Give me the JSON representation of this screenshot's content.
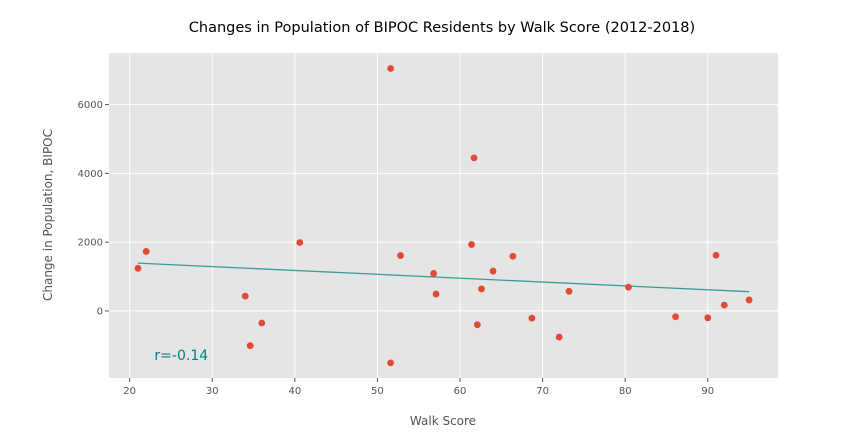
{
  "chart_data": {
    "type": "scatter",
    "title": "Changes in Population of BIPOC Residents by Walk Score (2012-2018)",
    "xlabel": "Walk Score",
    "ylabel": "Change in Population, BIPOC",
    "xlim": [
      17.5,
      98.5
    ],
    "ylim": [
      -1950,
      7500
    ],
    "x_ticks": [
      20,
      30,
      40,
      50,
      60,
      70,
      80,
      90
    ],
    "y_ticks": [
      0,
      2000,
      4000,
      6000
    ],
    "grid": true,
    "point_color": "#E24A33",
    "line_color": "#348ABD",
    "background_color": "#E5E5E5",
    "annotation_color": "#008080",
    "points": [
      {
        "x": 21,
        "y": 1240
      },
      {
        "x": 22,
        "y": 1730
      },
      {
        "x": 34,
        "y": 430
      },
      {
        "x": 34.6,
        "y": -1010
      },
      {
        "x": 36,
        "y": -350
      },
      {
        "x": 40.6,
        "y": 1990
      },
      {
        "x": 51.6,
        "y": 7050
      },
      {
        "x": 51.6,
        "y": -1510
      },
      {
        "x": 52.8,
        "y": 1610
      },
      {
        "x": 56.8,
        "y": 1090
      },
      {
        "x": 57.1,
        "y": 490
      },
      {
        "x": 61.4,
        "y": 1930
      },
      {
        "x": 61.7,
        "y": 4450
      },
      {
        "x": 62.1,
        "y": -400
      },
      {
        "x": 62.6,
        "y": 640
      },
      {
        "x": 64,
        "y": 1160
      },
      {
        "x": 66.4,
        "y": 1590
      },
      {
        "x": 68.7,
        "y": -210
      },
      {
        "x": 72,
        "y": -760
      },
      {
        "x": 73.2,
        "y": 570
      },
      {
        "x": 80.4,
        "y": 690
      },
      {
        "x": 86.1,
        "y": -170
      },
      {
        "x": 90,
        "y": -200
      },
      {
        "x": 91,
        "y": 1620
      },
      {
        "x": 92,
        "y": 170
      },
      {
        "x": 95,
        "y": 320
      }
    ],
    "trendline": {
      "x": [
        21,
        95
      ],
      "y": [
        1390,
        560
      ]
    },
    "annotation": {
      "text": "r=-0.14",
      "x": 23,
      "y": -1420
    }
  }
}
